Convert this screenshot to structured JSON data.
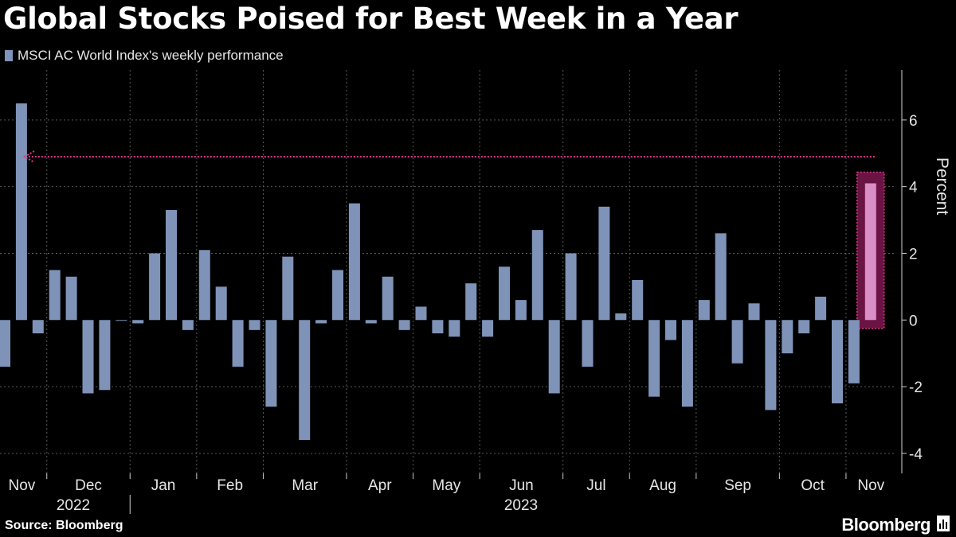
{
  "header": {
    "title": "Global Stocks Poised for Best Week in a Year",
    "legend_label": "MSCI AC World Index's weekly performance"
  },
  "footer": {
    "source": "Source: Bloomberg",
    "brand": "Bloomberg"
  },
  "colors": {
    "bar": "#7f93b8",
    "highlight_bar": "#d98fc6",
    "highlight_box": "#6b1342",
    "highlight_border": "#e0338f",
    "arrow": "#e0338f",
    "grid": "#5a5a5a"
  },
  "chart_data": {
    "type": "bar",
    "ylabel": "Percent",
    "ylim": [
      -4.6,
      7.5
    ],
    "yticks": [
      -4,
      -2,
      0,
      2,
      4,
      6
    ],
    "grid": true,
    "legend_placement": "top-left",
    "months": [
      {
        "label": "Nov",
        "start": 0,
        "end": 3
      },
      {
        "label": "Dec",
        "start": 3,
        "end": 8
      },
      {
        "label": "Jan",
        "start": 8,
        "end": 12
      },
      {
        "label": "Feb",
        "start": 12,
        "end": 16
      },
      {
        "label": "Mar",
        "start": 16,
        "end": 21
      },
      {
        "label": "Apr",
        "start": 21,
        "end": 25
      },
      {
        "label": "May",
        "start": 25,
        "end": 29
      },
      {
        "label": "Jun",
        "start": 29,
        "end": 34
      },
      {
        "label": "Jul",
        "start": 34,
        "end": 38
      },
      {
        "label": "Aug",
        "start": 38,
        "end": 42
      },
      {
        "label": "Sep",
        "start": 42,
        "end": 47
      },
      {
        "label": "Oct",
        "start": 47,
        "end": 51
      },
      {
        "label": "Nov",
        "start": 51,
        "end": 54
      }
    ],
    "years": [
      {
        "label": "2022",
        "start": 0,
        "end": 8
      },
      {
        "label": "2023",
        "start": 8,
        "end": 54
      }
    ],
    "series": [
      {
        "values": [
          -1.4,
          6.5,
          -0.4,
          1.5,
          1.3,
          -2.2,
          -2.1,
          0.0,
          -0.1,
          2.0,
          3.3,
          -0.3,
          2.1,
          1.0,
          -1.4,
          -0.3,
          -2.6,
          1.9,
          -3.6,
          -0.1,
          1.5,
          3.5,
          -0.1,
          1.3,
          -0.3,
          0.4,
          -0.4,
          -0.5,
          1.1,
          -0.5,
          1.6,
          0.6,
          2.7,
          -2.2,
          2.0,
          -1.4,
          3.4,
          0.2,
          1.2,
          -2.3,
          -0.6,
          -2.6,
          0.6,
          2.6,
          -1.3,
          0.5,
          -2.7,
          -1.0,
          -0.4,
          0.7,
          -2.5,
          -1.9,
          4.1
        ],
        "highlight_index": 52
      }
    ],
    "annotation": {
      "type": "dotted-arrow",
      "from_index": 52,
      "to_index": 1,
      "y": 4.9
    }
  }
}
